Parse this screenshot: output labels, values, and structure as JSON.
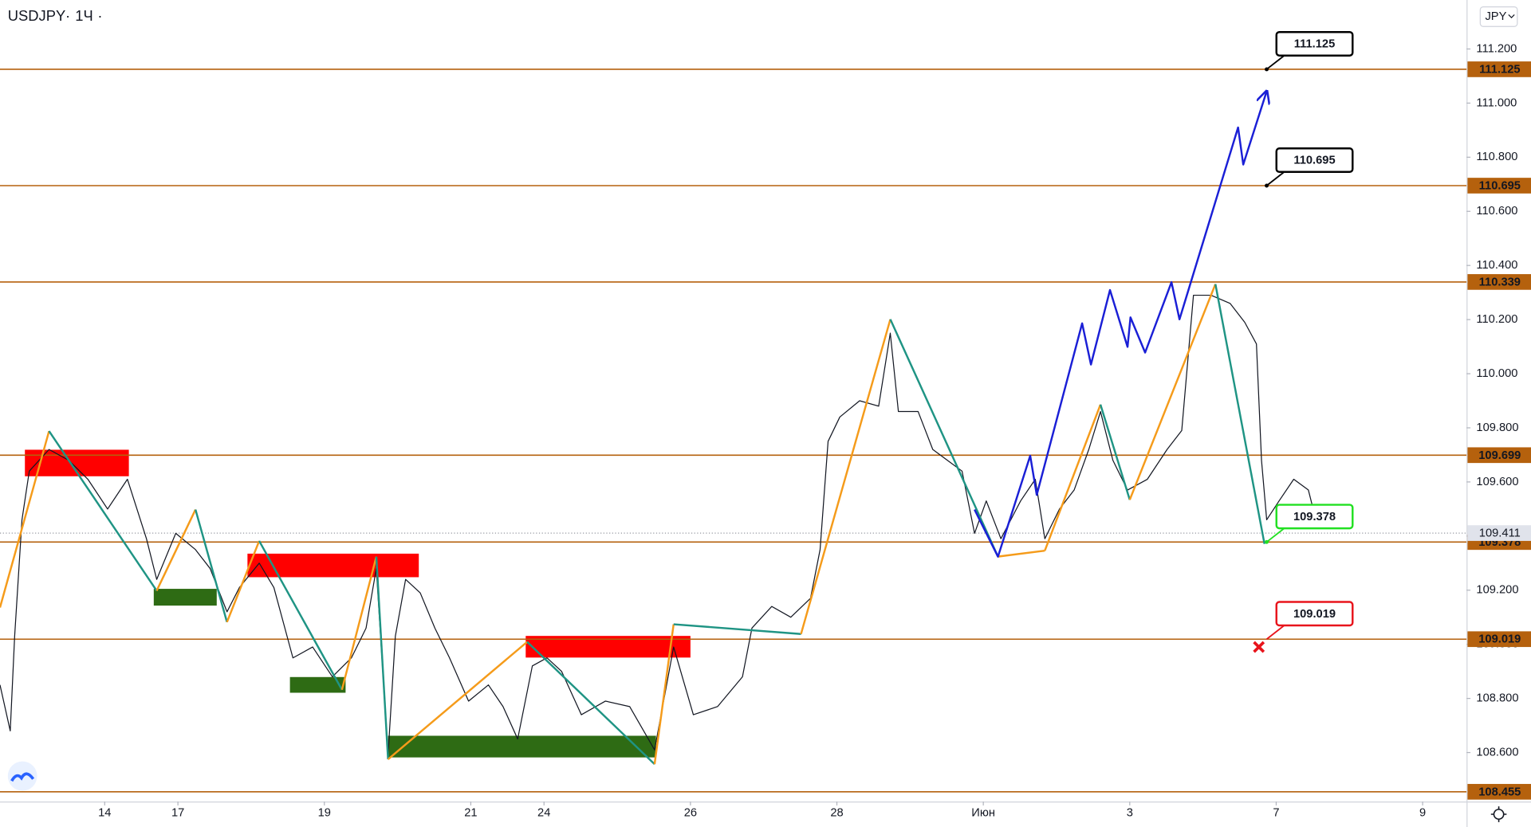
{
  "chart_data": {
    "type": "line",
    "symbol": "USDJPY",
    "interval": "1Ч",
    "currency": "JPY",
    "xlim": [
      -1.43,
      18.6
    ],
    "xticks": [
      {
        "value": 0,
        "label": "14"
      },
      {
        "value": 1,
        "label": "17"
      },
      {
        "value": 3,
        "label": "19"
      },
      {
        "value": 5,
        "label": "21"
      },
      {
        "value": 6,
        "label": "24"
      },
      {
        "value": 8,
        "label": "26"
      },
      {
        "value": 10,
        "label": "28"
      },
      {
        "value": 12,
        "label": "Июн"
      },
      {
        "value": 14,
        "label": "3"
      },
      {
        "value": 16,
        "label": "7"
      },
      {
        "value": 18,
        "label": "9"
      }
    ],
    "ylim": [
      108.419,
      111.381
    ],
    "yticks": [
      {
        "value": 108.6,
        "label": "108.600"
      },
      {
        "value": 108.8,
        "label": "108.800"
      },
      {
        "value": 109.0,
        "label": "109.000"
      },
      {
        "value": 109.2,
        "label": "109.200"
      },
      {
        "value": 109.4,
        "label": "109.400"
      },
      {
        "value": 109.6,
        "label": "109.600"
      },
      {
        "value": 109.8,
        "label": "109.800"
      },
      {
        "value": 110.0,
        "label": "110.000"
      },
      {
        "value": 110.2,
        "label": "110.200"
      },
      {
        "value": 110.4,
        "label": "110.400"
      },
      {
        "value": 110.6,
        "label": "110.600"
      },
      {
        "value": 110.8,
        "label": "110.800"
      },
      {
        "value": 111.0,
        "label": "111.000"
      },
      {
        "value": 111.2,
        "label": "111.200"
      }
    ],
    "grid": false,
    "price": {
      "color": "#131722",
      "x": [
        -1.43,
        -1.29,
        -1.23,
        -1.13,
        -1.03,
        -0.76,
        -0.49,
        -0.23,
        0.04,
        0.31,
        0.57,
        0.71,
        0.97,
        1.24,
        1.44,
        1.67,
        1.84,
        2.11,
        2.31,
        2.57,
        2.84,
        3.11,
        3.37,
        3.57,
        3.71,
        3.87,
        3.97,
        4.11,
        4.31,
        4.51,
        4.71,
        4.97,
        5.24,
        5.44,
        5.64,
        5.84,
        6.04,
        6.24,
        6.51,
        6.84,
        7.17,
        7.51,
        7.77,
        8.04,
        8.37,
        8.71,
        8.84,
        9.11,
        9.37,
        9.64,
        9.77,
        9.88,
        10.04,
        10.31,
        10.57,
        10.73,
        10.84,
        11.11,
        11.31,
        11.51,
        11.71,
        11.88,
        12.04,
        12.24,
        12.51,
        12.71,
        12.84,
        13.04,
        13.24,
        13.44,
        13.6,
        13.77,
        13.97,
        14.24,
        14.51,
        14.71,
        14.87,
        15.11,
        15.37,
        15.57,
        15.73,
        15.8,
        15.87,
        16.04,
        16.24,
        16.44,
        16.57
      ],
      "values": [
        108.85,
        108.68,
        109.03,
        109.46,
        109.64,
        109.72,
        109.68,
        109.61,
        109.5,
        109.61,
        109.39,
        109.24,
        109.41,
        109.35,
        109.28,
        109.12,
        109.21,
        109.3,
        109.21,
        108.95,
        108.99,
        108.88,
        108.95,
        109.06,
        109.28,
        108.59,
        109.03,
        109.24,
        109.19,
        109.06,
        108.95,
        108.79,
        108.85,
        108.77,
        108.65,
        108.92,
        108.95,
        108.9,
        108.74,
        108.79,
        108.77,
        108.61,
        108.99,
        108.74,
        108.77,
        108.88,
        109.06,
        109.14,
        109.1,
        109.17,
        109.35,
        109.75,
        109.84,
        109.9,
        109.88,
        110.15,
        109.86,
        109.86,
        109.72,
        109.68,
        109.64,
        109.41,
        109.53,
        109.39,
        109.53,
        109.61,
        109.39,
        109.5,
        109.57,
        109.72,
        109.86,
        109.68,
        109.57,
        109.61,
        109.72,
        109.79,
        110.29,
        110.29,
        110.26,
        110.19,
        110.11,
        109.68,
        109.46,
        109.53,
        109.61,
        109.57,
        109.43
      ]
    },
    "zigzag": {
      "up_color": "#f59b1a",
      "down_color": "#1f9484",
      "x": [
        -1.43,
        -0.76,
        0.71,
        1.24,
        1.67,
        2.11,
        3.24,
        3.71,
        3.87,
        5.77,
        7.51,
        7.77,
        9.51,
        10.73,
        12.2,
        12.84,
        13.6,
        14,
        15.17,
        15.84
      ],
      "values": [
        109.136,
        109.788,
        109.198,
        109.498,
        109.082,
        109.382,
        108.832,
        109.324,
        108.575,
        109.009,
        108.557,
        109.074,
        109.038,
        110.201,
        109.324,
        109.346,
        109.886,
        109.534,
        110.331,
        109.371
      ]
    },
    "forecast": {
      "color": "#1a1fd6",
      "x": [
        11.88,
        12.2,
        12.64,
        12.73,
        13.35,
        13.47,
        13.73,
        13.97,
        14.01,
        14.21,
        14.57,
        14.68,
        15.48,
        15.55,
        15.87
      ],
      "values": [
        109.498,
        109.324,
        109.697,
        109.552,
        110.186,
        110.034,
        110.309,
        110.099,
        110.208,
        110.078,
        110.338,
        110.201,
        110.91,
        110.773,
        111.044
      ]
    },
    "zones": [
      {
        "color": "#ff0000",
        "x": [
          -1.09,
          0.33
        ],
        "y": [
          109.621,
          109.719
        ]
      },
      {
        "color": "#ff0000",
        "x": [
          1.95,
          4.29
        ],
        "y": [
          109.248,
          109.335
        ]
      },
      {
        "color": "#ff0000",
        "x": [
          5.75,
          8
        ],
        "y": [
          108.951,
          109.031
        ]
      },
      {
        "color": "#2e6b14",
        "x": [
          0.67,
          1.53
        ],
        "y": [
          109.143,
          109.205
        ]
      },
      {
        "color": "#2e6b14",
        "x": [
          2.53,
          3.29
        ],
        "y": [
          108.821,
          108.879
        ]
      },
      {
        "color": "#2e6b14",
        "x": [
          3.87,
          7.53
        ],
        "y": [
          108.582,
          108.662
        ]
      }
    ],
    "level_color": "#b5610d",
    "levels": [
      {
        "value": 111.125,
        "label": "111.125"
      },
      {
        "value": 110.695,
        "label": "110.695"
      },
      {
        "value": 110.339,
        "label": "110.339"
      },
      {
        "value": 109.699,
        "label": "109.699"
      },
      {
        "value": 109.378,
        "label": "109.378"
      },
      {
        "value": 109.019,
        "label": "109.019"
      },
      {
        "value": 108.455,
        "label": "108.455"
      }
    ],
    "last_price": {
      "value": 109.411,
      "label": "109.411",
      "color": "#9598a1"
    },
    "callouts": [
      {
        "value": 111.125,
        "label": "111.125",
        "x": 15.87,
        "color": "#000000",
        "marker": "dot"
      },
      {
        "value": 110.695,
        "label": "110.695",
        "x": 15.87,
        "color": "#000000",
        "marker": "dot"
      },
      {
        "value": 109.378,
        "label": "109.378",
        "x": 15.87,
        "color": "#22e022",
        "marker": "dot"
      },
      {
        "value": 109.019,
        "label": "109.019",
        "x": 15.87,
        "color": "#e8141c",
        "marker": "cross"
      }
    ]
  }
}
